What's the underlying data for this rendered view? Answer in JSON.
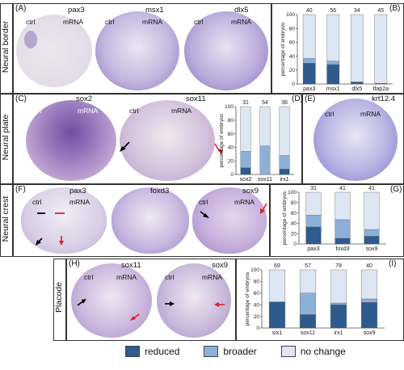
{
  "colors": {
    "reduced": "#2e5a8e",
    "broader": "#8cb0d8",
    "no_change": "#dde6f2"
  },
  "row_labels": [
    "Neural border",
    "Neural plate",
    "Neural crest",
    "Placode"
  ],
  "common": {
    "ctrl": "ctrl",
    "mrna": "mRNA"
  },
  "panels": {
    "A": {
      "letter": "(A)",
      "genes": [
        "pax3",
        "msx1",
        "dlx5"
      ]
    },
    "B": {
      "letter": "(B)"
    },
    "C": {
      "letter": "(C)",
      "genes": [
        "sox2",
        "sox11"
      ]
    },
    "D": {
      "letter": "(D)"
    },
    "E": {
      "letter": "(E)",
      "genes": [
        "krt12.4"
      ]
    },
    "F": {
      "letter": "(F)",
      "genes": [
        "pax3",
        "foxd3",
        "sox9"
      ]
    },
    "G": {
      "letter": "(G)"
    },
    "H": {
      "letter": "(H)",
      "genes": [
        "sox11",
        "sox9"
      ]
    },
    "I": {
      "letter": "(I)"
    }
  },
  "legend": {
    "reduced": "reduced",
    "broader": "broader",
    "no_change": "no change"
  },
  "chart_data": [
    {
      "panel": "B",
      "type": "bar",
      "stacked": true,
      "ylabel": "percentage of embryos",
      "ylim": [
        0,
        100
      ],
      "yticks": [
        0,
        20,
        40,
        60,
        80,
        100
      ],
      "categories": [
        "pax3",
        "msx1",
        "dlx5",
        "tfap2a"
      ],
      "n": [
        40,
        56,
        34,
        45
      ],
      "series": [
        {
          "name": "reduced",
          "values": [
            30,
            28,
            3,
            1
          ]
        },
        {
          "name": "broader",
          "values": [
            7,
            5,
            0,
            0
          ]
        },
        {
          "name": "no change",
          "values": [
            63,
            67,
            97,
            99
          ]
        }
      ]
    },
    {
      "panel": "D",
      "type": "bar",
      "stacked": true,
      "ylabel": "percentage of embryos",
      "ylim": [
        0,
        100
      ],
      "yticks": [
        0,
        20,
        40,
        60,
        80,
        100
      ],
      "categories": [
        "sox2",
        "sox11",
        "irx1"
      ],
      "n": [
        31,
        54,
        38
      ],
      "series": [
        {
          "name": "reduced",
          "values": [
            10,
            0,
            8
          ]
        },
        {
          "name": "broader",
          "values": [
            24,
            42,
            20
          ]
        },
        {
          "name": "no change",
          "values": [
            66,
            58,
            72
          ]
        }
      ]
    },
    {
      "panel": "G",
      "type": "bar",
      "stacked": true,
      "ylabel": "percentage of embryos",
      "ylim": [
        0,
        100
      ],
      "yticks": [
        0,
        20,
        40,
        60,
        80,
        100
      ],
      "categories": [
        "pax3",
        "foxd3",
        "sox9"
      ],
      "n": [
        31,
        41,
        41
      ],
      "series": [
        {
          "name": "reduced",
          "values": [
            33,
            11,
            15
          ]
        },
        {
          "name": "broader",
          "values": [
            23,
            36,
            13
          ]
        },
        {
          "name": "no change",
          "values": [
            44,
            53,
            72
          ]
        }
      ]
    },
    {
      "panel": "I",
      "type": "bar",
      "stacked": true,
      "ylabel": "percentage of embryos",
      "ylim": [
        0,
        100
      ],
      "yticks": [
        0,
        20,
        40,
        60,
        80,
        100
      ],
      "categories": [
        "six1",
        "sox11",
        "irx1",
        "sox9"
      ],
      "n": [
        69,
        57,
        78,
        40
      ],
      "series": [
        {
          "name": "reduced",
          "values": [
            45,
            23,
            40,
            44
          ]
        },
        {
          "name": "broader",
          "values": [
            0,
            37,
            3,
            6
          ]
        },
        {
          "name": "no change",
          "values": [
            55,
            40,
            57,
            50
          ]
        }
      ]
    }
  ]
}
